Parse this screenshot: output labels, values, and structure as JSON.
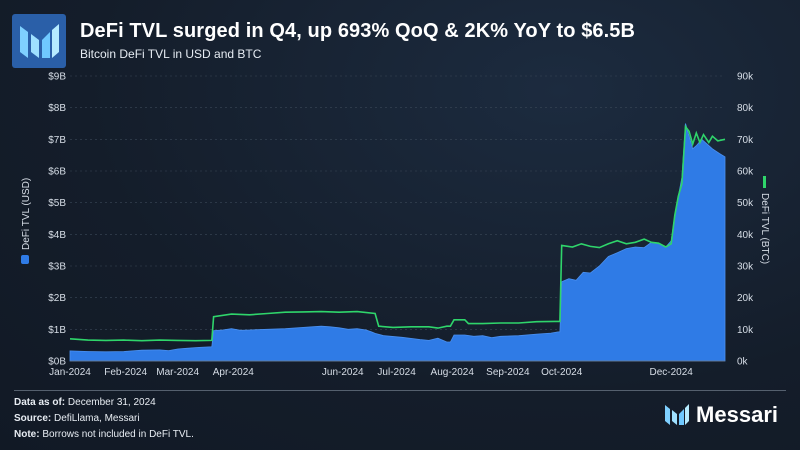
{
  "header": {
    "title": "DeFi TVL surged in Q4, up 693% QoQ & 2K% YoY to $6.5B",
    "subtitle": "Bitcoin DeFi TVL in USD and BTC"
  },
  "footer": {
    "data_label": "Data as of:",
    "data_value": "December 31, 2024",
    "source_label": "Source:",
    "source_value": "DefiLlama, Messari",
    "note_label": "Note:",
    "note_value": "Borrows not included in DeFi TVL."
  },
  "brand": {
    "name": "Messari"
  },
  "colors": {
    "usd": "#2f7be6",
    "btc": "#2fd56b",
    "background": "#15202f"
  },
  "chart_data": {
    "type": "area",
    "title": "DeFi TVL surged in Q4, up 693% QoQ & 2K% YoY to $6.5B",
    "subtitle": "Bitcoin DeFi TVL in USD and BTC",
    "x_tick_labels": [
      "Jan-2024",
      "Feb-2024",
      "Mar-2024",
      "Apr-2024",
      "Jun-2024",
      "Jul-2024",
      "Aug-2024",
      "Sep-2024",
      "Oct-2024",
      "Dec-2024"
    ],
    "x_tick_days": [
      0,
      31,
      60,
      91,
      152,
      182,
      213,
      244,
      274,
      335
    ],
    "x_range_days": [
      0,
      365
    ],
    "y_left": {
      "label": "DeFi TVL (USD)",
      "ticks": [
        "$0B",
        "$1B",
        "$2B",
        "$3B",
        "$4B",
        "$5B",
        "$6B",
        "$7B",
        "$8B",
        "$9B"
      ],
      "range": [
        0,
        9
      ]
    },
    "y_right": {
      "label": "DeFi TVL (BTC)",
      "ticks": [
        "0k",
        "10k",
        "20k",
        "30k",
        "40k",
        "50k",
        "60k",
        "70k",
        "80k",
        "90k"
      ],
      "range": [
        0,
        90
      ]
    },
    "legend": "rotated-axis-labels",
    "series": [
      {
        "name": "DeFi TVL (USD)",
        "kind": "area",
        "axis": "left",
        "unit": "$B",
        "points": [
          [
            0,
            0.32
          ],
          [
            10,
            0.3
          ],
          [
            20,
            0.29
          ],
          [
            30,
            0.3
          ],
          [
            40,
            0.34
          ],
          [
            50,
            0.35
          ],
          [
            55,
            0.33
          ],
          [
            60,
            0.38
          ],
          [
            65,
            0.4
          ],
          [
            72,
            0.43
          ],
          [
            79,
            0.45
          ],
          [
            80,
            0.96
          ],
          [
            85,
            0.98
          ],
          [
            90,
            1.02
          ],
          [
            95,
            0.97
          ],
          [
            100,
            0.98
          ],
          [
            110,
            1.0
          ],
          [
            120,
            1.02
          ],
          [
            130,
            1.06
          ],
          [
            140,
            1.1
          ],
          [
            145,
            1.08
          ],
          [
            150,
            1.05
          ],
          [
            155,
            1.0
          ],
          [
            160,
            1.02
          ],
          [
            165,
            0.98
          ],
          [
            168,
            0.92
          ],
          [
            170,
            0.87
          ],
          [
            175,
            0.8
          ],
          [
            185,
            0.75
          ],
          [
            195,
            0.68
          ],
          [
            200,
            0.65
          ],
          [
            205,
            0.72
          ],
          [
            210,
            0.6
          ],
          [
            212,
            0.6
          ],
          [
            214,
            0.82
          ],
          [
            220,
            0.82
          ],
          [
            225,
            0.78
          ],
          [
            230,
            0.8
          ],
          [
            235,
            0.74
          ],
          [
            240,
            0.78
          ],
          [
            250,
            0.8
          ],
          [
            260,
            0.85
          ],
          [
            268,
            0.88
          ],
          [
            272,
            0.92
          ],
          [
            273,
            0.92
          ],
          [
            274,
            2.5
          ],
          [
            278,
            2.6
          ],
          [
            282,
            2.55
          ],
          [
            286,
            2.8
          ],
          [
            290,
            2.78
          ],
          [
            295,
            3.0
          ],
          [
            300,
            3.3
          ],
          [
            305,
            3.42
          ],
          [
            310,
            3.55
          ],
          [
            315,
            3.6
          ],
          [
            320,
            3.58
          ],
          [
            324,
            3.75
          ],
          [
            328,
            3.72
          ],
          [
            332,
            3.6
          ],
          [
            335,
            3.8
          ],
          [
            337,
            4.6
          ],
          [
            339,
            5.2
          ],
          [
            341,
            5.8
          ],
          [
            343,
            7.5
          ],
          [
            345,
            7.1
          ],
          [
            347,
            6.7
          ],
          [
            349,
            6.8
          ],
          [
            352,
            7.0
          ],
          [
            355,
            6.85
          ],
          [
            358,
            6.7
          ],
          [
            362,
            6.55
          ],
          [
            365,
            6.45
          ]
        ]
      },
      {
        "name": "DeFi TVL (BTC)",
        "kind": "line",
        "axis": "right",
        "unit": "k BTC",
        "points": [
          [
            0,
            7.0
          ],
          [
            10,
            6.6
          ],
          [
            20,
            6.5
          ],
          [
            30,
            6.6
          ],
          [
            40,
            6.4
          ],
          [
            50,
            6.6
          ],
          [
            60,
            6.5
          ],
          [
            70,
            6.4
          ],
          [
            79,
            6.5
          ],
          [
            80,
            14.0
          ],
          [
            90,
            14.8
          ],
          [
            100,
            14.6
          ],
          [
            110,
            15.0
          ],
          [
            120,
            15.4
          ],
          [
            130,
            15.5
          ],
          [
            140,
            15.6
          ],
          [
            150,
            15.4
          ],
          [
            160,
            15.6
          ],
          [
            170,
            15.0
          ],
          [
            172,
            11.0
          ],
          [
            180,
            10.6
          ],
          [
            190,
            10.8
          ],
          [
            200,
            10.8
          ],
          [
            205,
            10.4
          ],
          [
            210,
            11.0
          ],
          [
            212,
            11.0
          ],
          [
            214,
            13.0
          ],
          [
            220,
            13.0
          ],
          [
            222,
            11.8
          ],
          [
            230,
            11.8
          ],
          [
            240,
            12.0
          ],
          [
            250,
            12.0
          ],
          [
            260,
            12.4
          ],
          [
            270,
            12.5
          ],
          [
            273,
            12.5
          ],
          [
            274,
            36.5
          ],
          [
            280,
            36.0
          ],
          [
            285,
            37.0
          ],
          [
            290,
            36.2
          ],
          [
            295,
            35.8
          ],
          [
            300,
            37.0
          ],
          [
            305,
            38.0
          ],
          [
            310,
            37.0
          ],
          [
            315,
            37.5
          ],
          [
            320,
            38.5
          ],
          [
            324,
            37.5
          ],
          [
            328,
            37.2
          ],
          [
            332,
            36.0
          ],
          [
            335,
            37.0
          ],
          [
            337,
            46.0
          ],
          [
            339,
            52.0
          ],
          [
            341,
            56.0
          ],
          [
            343,
            74.0
          ],
          [
            345,
            72.5
          ],
          [
            347,
            68.5
          ],
          [
            349,
            72.0
          ],
          [
            351,
            69.0
          ],
          [
            353,
            71.5
          ],
          [
            356,
            69.0
          ],
          [
            358,
            71.0
          ],
          [
            361,
            69.5
          ],
          [
            365,
            70.0
          ]
        ]
      }
    ]
  }
}
